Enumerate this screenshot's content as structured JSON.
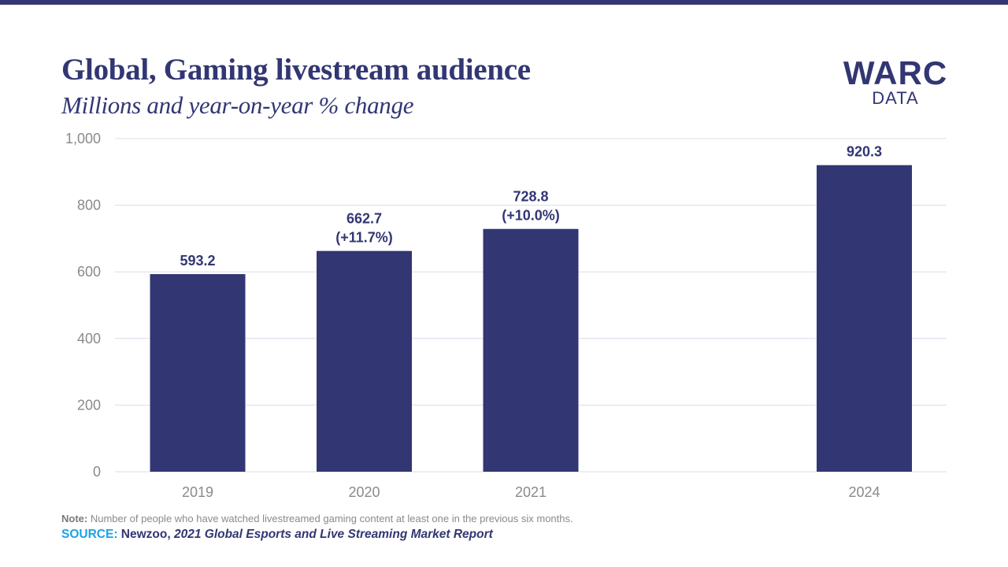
{
  "header": {
    "title": "Global, Gaming livestream audience",
    "subtitle": "Millions and year-on-year % change"
  },
  "logo": {
    "main": "WARC",
    "sub": "DATA"
  },
  "footer": {
    "note_label": "Note:",
    "note_text": " Number of people  who have watched livestreamed gaming content at least one  in the previous  six months.",
    "source_label": "SOURCE:",
    "source_publisher": " Newzoo, ",
    "source_title": "2021  Global Esports and Live Streaming  Market Report"
  },
  "colors": {
    "brand": "#323673",
    "bar": "#323673",
    "gridline": "#dcdcea",
    "axis_text": "#8a8a8a",
    "source_accent": "#1aa3e8"
  },
  "chart_data": {
    "type": "bar",
    "title": "Global, Gaming livestream audience",
    "subtitle": "Millions and year-on-year % change",
    "xlabel": "",
    "ylabel": "",
    "categories": [
      "2019",
      "2020",
      "2021",
      "2024"
    ],
    "values": [
      593.2,
      662.7,
      728.8,
      920.3
    ],
    "value_labels": [
      "593.2",
      "662.7",
      "728.8",
      "920.3"
    ],
    "change_labels": [
      "",
      "(+11.7%)",
      "(+10.0%)",
      ""
    ],
    "ylim": [
      0,
      1000
    ],
    "yticks": [
      0,
      200,
      400,
      600,
      800,
      1000
    ],
    "ytick_labels": [
      "0",
      "200",
      "400",
      "600",
      "800",
      "1,000"
    ],
    "grid": true,
    "legend": "none"
  }
}
